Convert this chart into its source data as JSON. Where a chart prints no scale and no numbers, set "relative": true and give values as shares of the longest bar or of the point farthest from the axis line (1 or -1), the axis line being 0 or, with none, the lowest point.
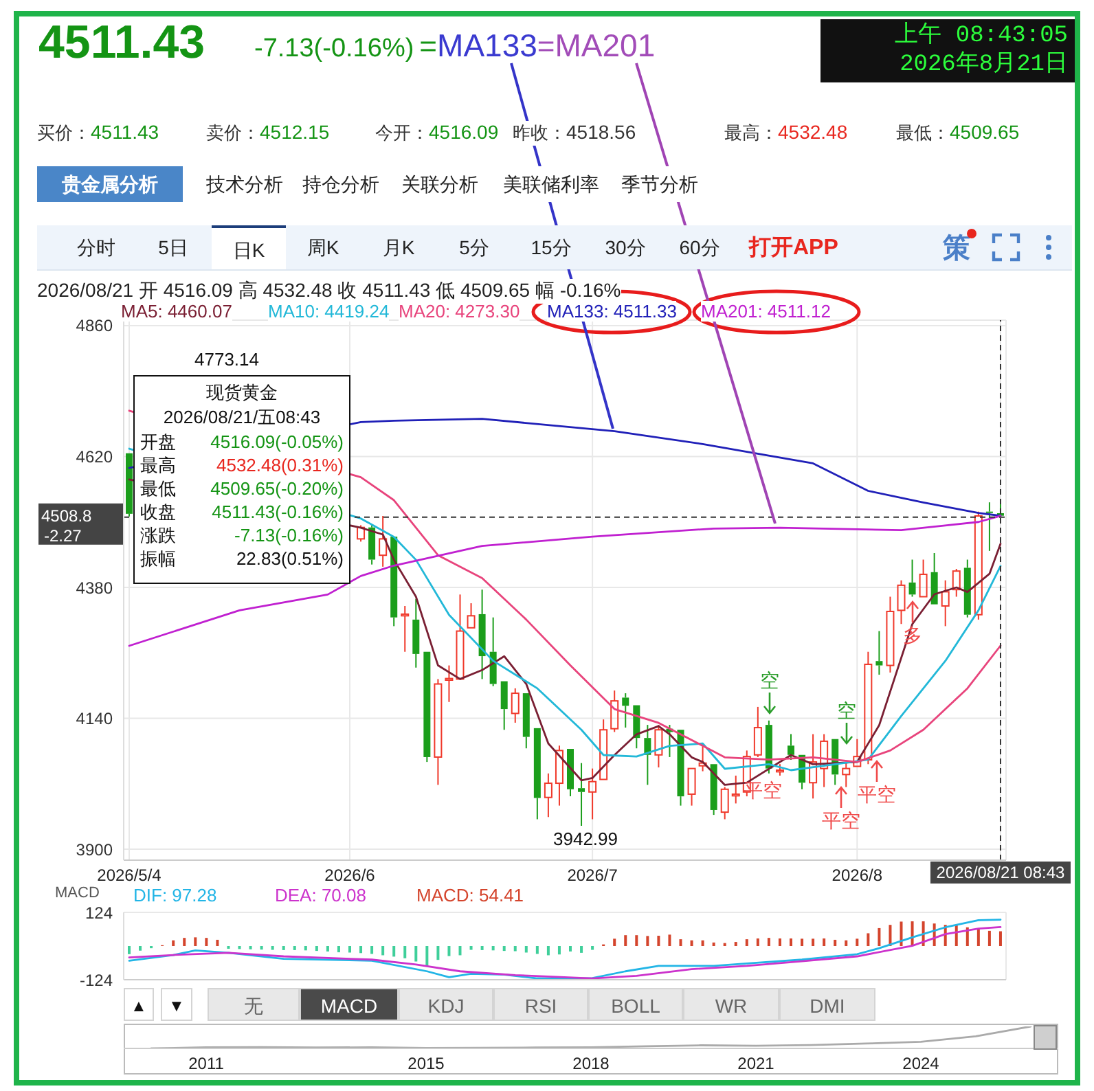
{
  "chart_data": [
    {
      "type": "other",
      "annotations": [
        "4511.43",
        "-7.13(-0.16%)",
        "=",
        "MA133",
        "=",
        "MA201",
        "上午 08:43:05",
        "2026年8月21日",
        "买价：",
        "4511.43",
        "卖价：",
        "4512.15",
        "今开：",
        "4516.09",
        "昨收：",
        "4518.56",
        "最高：",
        "4532.48",
        "最低：",
        "4509.65",
        "贵金属分析",
        "技术分析",
        "持仓分析",
        "关联分析",
        "美联储利率",
        "季节分析",
        "分时",
        "5日",
        "日K",
        "周K",
        "月K",
        "5分",
        "15分",
        "30分",
        "60分",
        "打开APP",
        "策"
      ]
    },
    {
      "type": "candlestick",
      "subtitle": "2026/08/21 开 4516.09 高 4532.48 收 4511.43 低 4509.65 幅 -0.16%",
      "categories": [
        "2026/5/4",
        null,
        null,
        null,
        null,
        null,
        null,
        null,
        null,
        null,
        null,
        null,
        null,
        null,
        null,
        null,
        null,
        null,
        null,
        null,
        "2026/6",
        null,
        null,
        null,
        null,
        null,
        null,
        null,
        null,
        null,
        null,
        null,
        null,
        null,
        null,
        null,
        null,
        null,
        null,
        null,
        null,
        null,
        "2026/7",
        null,
        null,
        null,
        null,
        null,
        null,
        null,
        null,
        null,
        null,
        null,
        null,
        null,
        null,
        null,
        null,
        null,
        null,
        null,
        null,
        null,
        null,
        null,
        "2026/8",
        null,
        null,
        null,
        null,
        null,
        null,
        null,
        null,
        null,
        null,
        null,
        null,
        "2026/08/21 08:43"
      ],
      "ohlc": [
        [
          4626,
          4628,
          4510,
          4515
        ],
        null,
        null,
        null,
        null,
        null,
        null,
        null,
        null,
        null,
        null,
        null,
        null,
        null,
        null,
        null,
        null,
        null,
        null,
        null,
        null,
        [
          4469,
          4494,
          4464,
          4490
        ],
        [
          4490,
          4494,
          4422,
          4431
        ],
        [
          4439,
          4511,
          4418,
          4469
        ],
        [
          4473,
          4475,
          4309,
          4325
        ],
        [
          4328,
          4346,
          4262,
          4331
        ],
        [
          4321,
          4359,
          4233,
          4258
        ],
        [
          4262,
          4265,
          4060,
          4069
        ],
        [
          4069,
          4212,
          4018,
          4203
        ],
        [
          4210,
          4237,
          4170,
          4213
        ],
        [
          4212,
          4367,
          4209,
          4300
        ],
        [
          4306,
          4351,
          4304,
          4328
        ],
        [
          4331,
          4376,
          4212,
          4254
        ],
        [
          4262,
          4325,
          4199,
          4203
        ],
        [
          4208,
          4209,
          4119,
          4157
        ],
        [
          4149,
          4195,
          4132,
          4186
        ],
        [
          4186,
          4188,
          4085,
          4106
        ],
        [
          4122,
          4123,
          3955,
          3994
        ],
        [
          3995,
          4039,
          3959,
          4021
        ],
        [
          4021,
          4090,
          3980,
          4081
        ],
        [
          4084,
          4085,
          3997,
          4010
        ],
        [
          4012,
          4058,
          3942.99,
          4005
        ],
        [
          4005,
          4048,
          3955,
          4024
        ],
        [
          4028,
          4138,
          4026,
          4119
        ],
        [
          4121,
          4191,
          4115,
          4172
        ],
        [
          4178,
          4186,
          4123,
          4163
        ],
        [
          4164,
          4165,
          4085,
          4104
        ],
        [
          4104,
          4128,
          4018,
          4073
        ],
        [
          4073,
          4128,
          4050,
          4119
        ],
        [
          4121,
          4128,
          4069,
          4115
        ],
        [
          4119,
          4121,
          3980,
          3997
        ],
        [
          4001,
          4049,
          3980,
          4048
        ],
        [
          4053,
          4094,
          4043,
          4058
        ],
        [
          4056,
          4057,
          3963,
          3972
        ],
        [
          3968,
          4014,
          3955,
          4010
        ],
        [
          3998,
          4035,
          3984,
          4001
        ],
        [
          4005,
          4081,
          3997,
          4070
        ],
        [
          4073,
          4161,
          4069,
          4123
        ],
        [
          4128,
          4136,
          4039,
          4048
        ],
        [
          4042,
          4056,
          4035,
          4045
        ],
        [
          4090,
          4111,
          4064,
          4073
        ],
        [
          4073,
          4074,
          4010,
          4022
        ],
        [
          4022,
          4111,
          3993,
          4060
        ],
        [
          4048,
          4111,
          4014,
          4098
        ],
        [
          4102,
          4104,
          4018,
          4037
        ],
        [
          4037,
          4060,
          4014,
          4048
        ],
        [
          4052,
          4102,
          4050,
          4070
        ],
        [
          4064,
          4262,
          4056,
          4239
        ],
        [
          4245,
          4300,
          4220,
          4237
        ],
        [
          4237,
          4363,
          4224,
          4336
        ],
        [
          4338,
          4393,
          4313,
          4384
        ],
        [
          4389,
          4431,
          4363,
          4367
        ],
        [
          4363,
          4431,
          4361,
          4404
        ],
        [
          4408,
          4443,
          4346,
          4349
        ],
        [
          4346,
          4393,
          4309,
          4372
        ],
        [
          4376,
          4414,
          4363,
          4410
        ],
        [
          4416,
          4431,
          4325,
          4330
        ],
        [
          4330,
          4519,
          4321,
          4511
        ],
        [
          4519,
          4536,
          4447,
          4517
        ],
        [
          4516.09,
          4532.48,
          4509.65,
          4511.43
        ]
      ],
      "colors": [
        "#1b9e1b",
        null,
        null,
        null,
        null,
        null,
        null,
        null,
        null,
        null,
        null,
        null,
        null,
        null,
        null,
        null,
        null,
        null,
        null,
        null,
        null,
        "#f0392b",
        "#1b9e1b",
        "#f0392b",
        "#1b9e1b",
        "#f0392b",
        "#1b9e1b",
        "#1b9e1b",
        "#f0392b",
        "#f0392b",
        "#f0392b",
        "#f0392b",
        "#1b9e1b",
        "#1b9e1b",
        "#1b9e1b",
        "#f0392b",
        "#1b9e1b",
        "#1b9e1b",
        "#f0392b",
        "#f0392b",
        "#1b9e1b",
        "#1b9e1b",
        "#f0392b",
        "#f0392b",
        "#f0392b",
        "#1b9e1b",
        "#1b9e1b",
        "#1b9e1b",
        "#f0392b",
        "#1b9e1b",
        "#1b9e1b",
        "#f0392b",
        "#f0392b",
        "#1b9e1b",
        "#f0392b",
        "#f0392b",
        "#f0392b",
        "#f0392b",
        "#1b9e1b",
        "#f0392b",
        "#1b9e1b",
        "#1b9e1b",
        "#f0392b",
        "#f0392b",
        "#1b9e1b",
        "#f0392b",
        "#f0392b",
        "#f0392b",
        "#1b9e1b",
        "#f0392b",
        "#f0392b",
        "#1b9e1b",
        "#f0392b",
        "#1b9e1b",
        "#f0392b",
        "#f0392b",
        "#1b9e1b",
        "#f0392b",
        "#1b9e1b",
        "#1b9e1b"
      ],
      "series": [
        {
          "name": "MA5: 4460.07",
          "type": "line",
          "color": "#7a1f33",
          "values": [
            4578,
            null,
            null,
            null,
            null,
            null,
            null,
            null,
            null,
            null,
            null,
            null,
            null,
            null,
            null,
            null,
            null,
            null,
            null,
            null,
            null,
            4489.5,
            null,
            4477,
            4430.6,
            null,
            4363,
            null,
            4237,
            null,
            4212,
            null,
            4228.5,
            null,
            4253.8,
            null,
            4203,
            null,
            4093.8,
            null,
            null,
            4026.4,
            4030.6,
            null,
            4072.7,
            null,
            4110.7,
            null,
            4125.8,
            4110.7,
            null,
            4068.5,
            4060,
            null,
            4018,
            null,
            4022.2,
            null,
            null,
            null,
            4072.7,
            null,
            4055.9,
            null,
            null,
            null,
            4060,
            null,
            4127.5,
            null,
            null,
            4312.7,
            null,
            4367.4,
            null,
            4380,
            4371.7,
            null,
            4405,
            4460.07
          ]
        },
        {
          "name": "MA10: 4419.24",
          "type": "line",
          "color": "#22b8d8",
          "values": [
            4634.4,
            null,
            null,
            null,
            null,
            null,
            null,
            null,
            null,
            null,
            null,
            null,
            null,
            null,
            null,
            null,
            null,
            null,
            null,
            null,
            null,
            4506.4,
            null,
            null,
            4472.7,
            null,
            4430.6,
            null,
            null,
            4329.6,
            null,
            null,
            null,
            4245.4,
            null,
            null,
            null,
            4195,
            null,
            null,
            null,
            4119,
            null,
            4072.7,
            null,
            null,
            4070,
            null,
            null,
            4089.6,
            null,
            null,
            4093.8,
            null,
            4047.5,
            null,
            null,
            null,
            4055.9,
            null,
            4045,
            null,
            null,
            null,
            4055.9,
            null,
            null,
            4064.3,
            null,
            null,
            4144.3,
            null,
            null,
            null,
            4245.4,
            null,
            null,
            4338,
            null,
            4419.24
          ]
        },
        {
          "name": "MA20: 4273.30",
          "type": "line",
          "color": "#e8447c",
          "values": [
            4704,
            null,
            null,
            null,
            null,
            null,
            null,
            null,
            null,
            null,
            null,
            null,
            null,
            null,
            null,
            null,
            null,
            null,
            null,
            null,
            null,
            4582,
            null,
            null,
            4540,
            null,
            null,
            null,
            4439,
            null,
            null,
            null,
            4397,
            null,
            null,
            null,
            4321,
            null,
            null,
            null,
            4237,
            null,
            null,
            null,
            4157,
            null,
            null,
            null,
            4131.7,
            null,
            null,
            null,
            4089.6,
            null,
            4068.5,
            null,
            null,
            null,
            4064.3,
            null,
            null,
            null,
            4068.5,
            null,
            null,
            null,
            4060,
            null,
            null,
            4081,
            null,
            null,
            4119,
            null,
            null,
            null,
            4195,
            null,
            null,
            4273.3
          ]
        },
        {
          "name": "MA133: 4511.33",
          "type": "line",
          "color": "#2020b8",
          "values": [
            4599,
            null,
            null,
            null,
            null,
            null,
            null,
            null,
            null,
            null,
            null,
            null,
            null,
            null,
            null,
            null,
            null,
            null,
            null,
            null,
            null,
            4683,
            null,
            null,
            4685.7,
            null,
            null,
            null,
            null,
            null,
            null,
            null,
            4689,
            null,
            null,
            null,
            null,
            null,
            null,
            null,
            null,
            null,
            null,
            null,
            4666.4,
            null,
            null,
            null,
            null,
            null,
            null,
            null,
            4642.8,
            null,
            null,
            null,
            4628.5,
            null,
            null,
            null,
            null,
            null,
            4607.4,
            null,
            null,
            null,
            null,
            4557,
            null,
            null,
            null,
            null,
            4535.9,
            null,
            null,
            null,
            null,
            4516.5,
            null,
            4511.33
          ]
        },
        {
          "name": "MA201: 4511.12",
          "type": "line",
          "color": "#c020d0",
          "values": [
            4273,
            null,
            null,
            null,
            null,
            null,
            null,
            null,
            null,
            null,
            4338,
            null,
            null,
            null,
            null,
            null,
            null,
            null,
            4367,
            null,
            null,
            4401,
            null,
            null,
            4420,
            null,
            null,
            null,
            null,
            null,
            null,
            null,
            4456,
            null,
            null,
            null,
            null,
            null,
            null,
            null,
            null,
            null,
            4473,
            null,
            null,
            null,
            null,
            null,
            null,
            null,
            null,
            null,
            null,
            4488,
            null,
            null,
            null,
            null,
            null,
            4489.5,
            null,
            null,
            null,
            null,
            null,
            null,
            null,
            null,
            null,
            null,
            4485,
            null,
            null,
            null,
            null,
            null,
            null,
            4500,
            null,
            4511.12
          ]
        }
      ],
      "ylim": [
        3880,
        4870
      ],
      "yticks": [
        4860,
        4620,
        4380,
        4140,
        3900
      ],
      "grid": true,
      "legend": "top left",
      "ref_lines": [
        {
          "axis": "y",
          "value": 4508.8,
          "label": "4508.8",
          "line_style": "dashed",
          "color": "#333333"
        },
        {
          "axis": "x",
          "value": "2026/08/21 08:43",
          "line_style": "dashed",
          "color": "#333333"
        }
      ],
      "annotations": [
        "4773.14",
        "3942.99",
        "现货黄金",
        "2026/08/21/五08:43",
        "开盘",
        "4516.09(-0.05%)",
        "最高",
        "4532.48(0.31%)",
        "最低",
        "4509.65(-0.20%)",
        "收盘",
        "4511.43(-0.16%)",
        "涨跌",
        "-7.13(-0.16%)",
        "振幅",
        "22.83(0.51%)",
        "-2.27",
        "空",
        "空",
        "平空",
        "平空",
        "平空",
        "多"
      ]
    },
    {
      "type": "bar",
      "title": "MACD",
      "categories": [
        "2026/5/4",
        null,
        null,
        null,
        null,
        null,
        null,
        null,
        null,
        null,
        null,
        null,
        null,
        null,
        null,
        null,
        null,
        null,
        null,
        null,
        "2026/6",
        null,
        null,
        null,
        null,
        null,
        null,
        null,
        null,
        null,
        null,
        null,
        null,
        null,
        null,
        null,
        null,
        null,
        null,
        null,
        null,
        null,
        "2026/7",
        null,
        null,
        null,
        null,
        null,
        null,
        null,
        null,
        null,
        null,
        null,
        null,
        null,
        null,
        null,
        null,
        null,
        null,
        null,
        null,
        null,
        null,
        null,
        "2026/8",
        null,
        null,
        null,
        null,
        null,
        null,
        null,
        null,
        null,
        null,
        null,
        null,
        "2026/08/21 08:43"
      ],
      "series": [
        {
          "name": "DIF: 97.28",
          "type": "line",
          "color": "#22b5e6",
          "values": [
            -54,
            null,
            null,
            null,
            -33,
            null,
            -16,
            null,
            null,
            -25,
            null,
            null,
            null,
            null,
            -47,
            null,
            null,
            null,
            null,
            null,
            null,
            null,
            -54,
            null,
            null,
            null,
            null,
            -93,
            null,
            -115,
            null,
            -102,
            null,
            null,
            -105,
            null,
            null,
            -119,
            null,
            -120,
            null,
            null,
            -118,
            null,
            null,
            -93,
            null,
            null,
            -73,
            null,
            null,
            null,
            null,
            -73,
            null,
            null,
            -64,
            null,
            null,
            null,
            null,
            -50,
            null,
            null,
            null,
            null,
            -30,
            null,
            -8,
            null,
            null,
            32,
            null,
            null,
            69,
            null,
            null,
            95,
            null,
            97.28
          ]
        },
        {
          "name": "DEA: 70.08",
          "type": "line",
          "color": "#cc33cc",
          "values": [
            -42,
            null,
            null,
            null,
            -33,
            null,
            null,
            null,
            null,
            -25,
            null,
            null,
            null,
            null,
            -38,
            null,
            null,
            null,
            null,
            null,
            null,
            null,
            -50,
            null,
            null,
            null,
            -68,
            null,
            null,
            null,
            -93,
            null,
            null,
            null,
            null,
            -107,
            null,
            null,
            null,
            null,
            null,
            null,
            -119,
            null,
            null,
            null,
            -110,
            null,
            null,
            null,
            null,
            -85,
            null,
            null,
            null,
            null,
            -73,
            null,
            null,
            null,
            null,
            -56,
            null,
            null,
            null,
            null,
            -38,
            null,
            null,
            null,
            null,
            1,
            null,
            null,
            44,
            null,
            null,
            64,
            null,
            70.08
          ]
        },
        {
          "name": "MACD: 54.41",
          "type": "bar",
          "color": "#d4442c",
          "values": [
            -30,
            -17,
            -8,
            3,
            21,
            30,
            32,
            30,
            23,
            -10,
            -11,
            -12,
            -13,
            -14,
            -15,
            -15,
            -16,
            -18,
            -20,
            -23,
            -24,
            -26,
            -29,
            -34,
            -39,
            -45,
            -57,
            -73,
            -51,
            -37,
            -34,
            -14,
            -15,
            -16,
            -18,
            -19,
            -24,
            -29,
            -34,
            -31,
            -20,
            -25,
            -14,
            6,
            27,
            40,
            40,
            37,
            38,
            42,
            25,
            21,
            21,
            13,
            11,
            15,
            25,
            28,
            30,
            28,
            28,
            27,
            27,
            28,
            23,
            21,
            27,
            47,
            66,
            78,
            90,
            91,
            91,
            83,
            78,
            76,
            69,
            62,
            56,
            54.41
          ],
          "colors": [
            "#3fcf9a",
            "#3fcf9a",
            "#3fcf9a",
            "#d4442c",
            "#d4442c",
            "#d4442c",
            "#d4442c",
            "#d4442c",
            "#d4442c",
            "#3fcf9a",
            "#3fcf9a",
            "#3fcf9a",
            "#3fcf9a",
            "#3fcf9a",
            "#3fcf9a",
            "#3fcf9a",
            "#3fcf9a",
            "#3fcf9a",
            "#3fcf9a",
            "#3fcf9a",
            "#3fcf9a",
            "#3fcf9a",
            "#3fcf9a",
            "#3fcf9a",
            "#3fcf9a",
            "#3fcf9a",
            "#3fcf9a",
            "#3fcf9a",
            "#3fcf9a",
            "#3fcf9a",
            "#3fcf9a",
            "#3fcf9a",
            "#3fcf9a",
            "#3fcf9a",
            "#3fcf9a",
            "#3fcf9a",
            "#3fcf9a",
            "#3fcf9a",
            "#3fcf9a",
            "#3fcf9a",
            "#3fcf9a",
            "#3fcf9a",
            "#3fcf9a",
            "#d4442c",
            "#d4442c",
            "#d4442c",
            "#d4442c",
            "#d4442c",
            "#d4442c",
            "#d4442c",
            "#d4442c",
            "#d4442c",
            "#d4442c",
            "#d4442c",
            "#d4442c",
            "#d4442c",
            "#d4442c",
            "#d4442c",
            "#d4442c",
            "#d4442c",
            "#d4442c",
            "#d4442c",
            "#d4442c",
            "#d4442c",
            "#d4442c",
            "#d4442c",
            "#d4442c",
            "#d4442c",
            "#d4442c",
            "#d4442c",
            "#d4442c",
            "#d4442c",
            "#d4442c",
            "#d4442c",
            "#d4442c",
            "#d4442c",
            "#d4442c",
            "#d4442c",
            "#d4442c",
            "#d4442c"
          ]
        }
      ],
      "ylim": [
        -124,
        124
      ],
      "yticks": [
        124,
        -124
      ],
      "grid": true,
      "legend": "top left",
      "tick_labels": "y"
    },
    {
      "type": "other",
      "annotations": [
        "▲",
        "▼",
        "无",
        "MACD",
        "KDJ",
        "RSI",
        "BOLL",
        "WR",
        "DMI"
      ]
    },
    {
      "type": "line",
      "relative": true,
      "color": "#aaaaaa",
      "tick_labels": "x",
      "categories": [
        null,
        "2011",
        null,
        null,
        null,
        "2015",
        null,
        null,
        "2018",
        null,
        null,
        "2021",
        null,
        null,
        "2024",
        null,
        null
      ],
      "values": [
        0,
        0.05,
        0.06,
        0.04,
        0.05,
        0.02,
        0.03,
        0.04,
        0.05,
        0.1,
        0.14,
        0.12,
        0.15,
        0.22,
        0.3,
        0.55,
        1
      ]
    }
  ]
}
